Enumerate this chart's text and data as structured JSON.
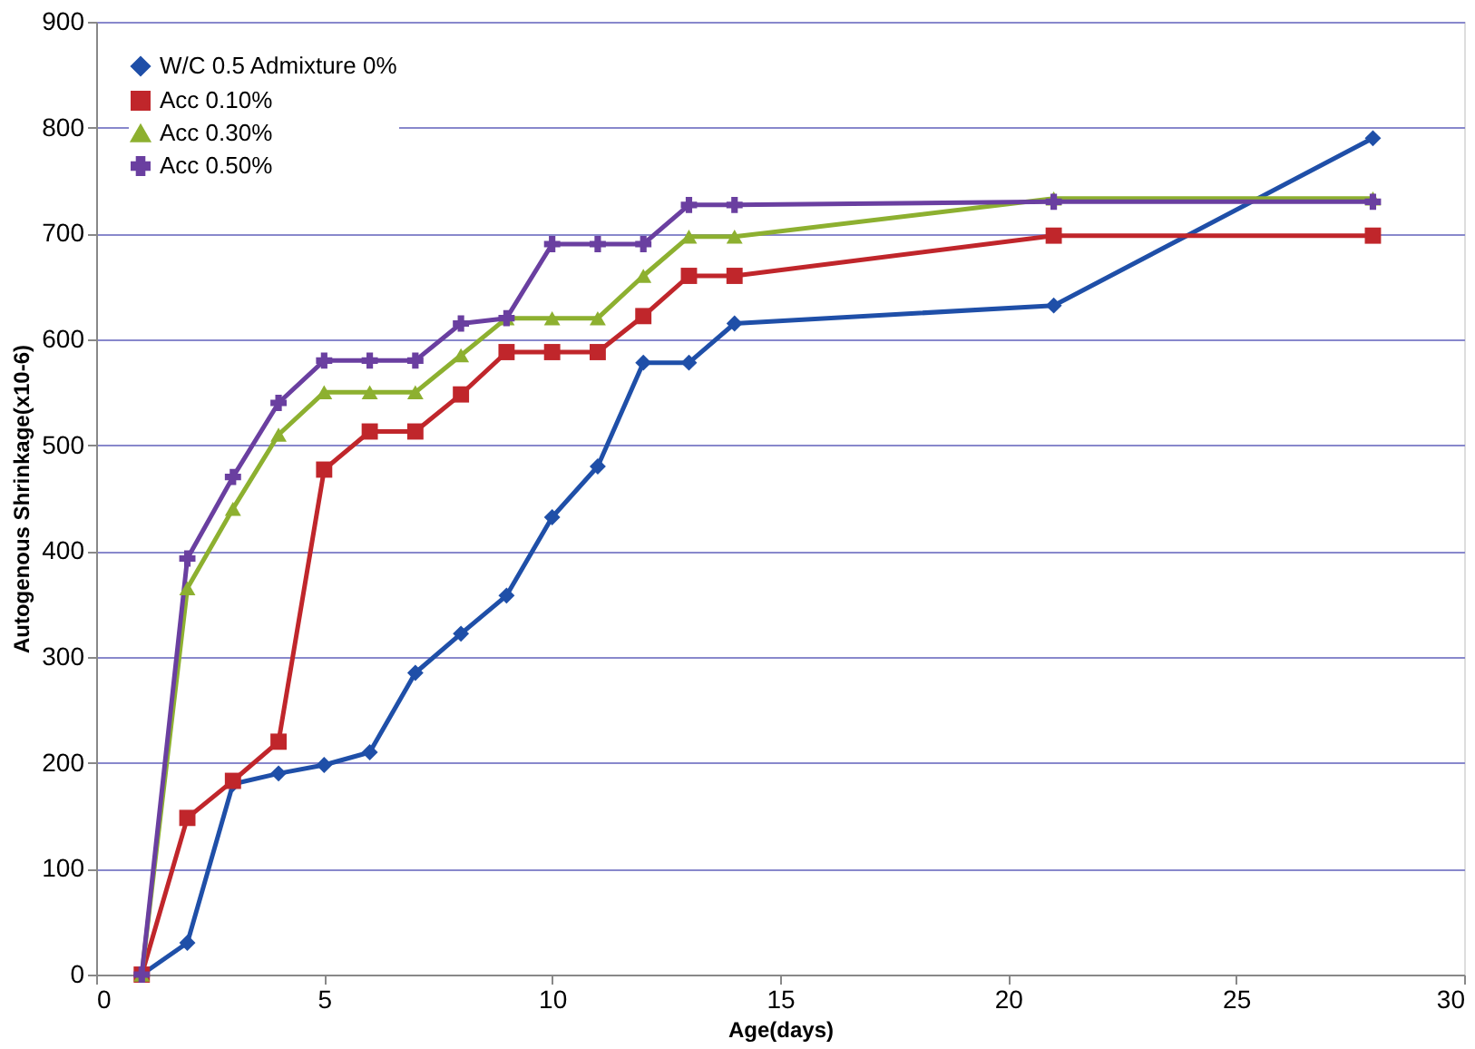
{
  "chart_data": {
    "type": "line",
    "xlabel": "Age(days)",
    "ylabel": "Autogenous Shrinkage(x10-6)",
    "x": [
      1,
      2,
      3,
      4,
      5,
      6,
      7,
      8,
      9,
      10,
      11,
      12,
      13,
      14,
      21,
      28
    ],
    "series": [
      {
        "name": "W/C 0.5 Admixture 0%",
        "color": "#1f4fa8",
        "marker": "diamond",
        "values": [
          0,
          30,
          180,
          190,
          198,
          210,
          285,
          322,
          358,
          432,
          480,
          578,
          578,
          615,
          632,
          790
        ]
      },
      {
        "name": "Acc 0.10%",
        "color": "#c0262b",
        "marker": "square",
        "values": [
          0,
          148,
          183,
          220,
          477,
          513,
          513,
          548,
          588,
          588,
          588,
          622,
          660,
          660,
          698,
          698
        ]
      },
      {
        "name": "Acc 0.30%",
        "color": "#8db030",
        "marker": "triangle",
        "values": [
          0,
          365,
          440,
          510,
          550,
          550,
          550,
          585,
          620,
          620,
          620,
          660,
          697,
          697,
          733,
          733
        ]
      },
      {
        "name": "Acc 0.50%",
        "color": "#6a3fa0",
        "marker": "cross",
        "values": [
          0,
          393,
          470,
          540,
          580,
          580,
          580,
          615,
          620,
          690,
          690,
          690,
          727,
          727,
          730,
          730
        ]
      }
    ],
    "xlim": [
      0,
      30
    ],
    "xticks": [
      0,
      5,
      10,
      15,
      20,
      25,
      30
    ],
    "ylim": [
      0,
      900
    ],
    "yticks": [
      0,
      100,
      200,
      300,
      400,
      500,
      600,
      700,
      800,
      900
    ],
    "grid": "y",
    "legend": "top left",
    "line_style": "solid"
  }
}
